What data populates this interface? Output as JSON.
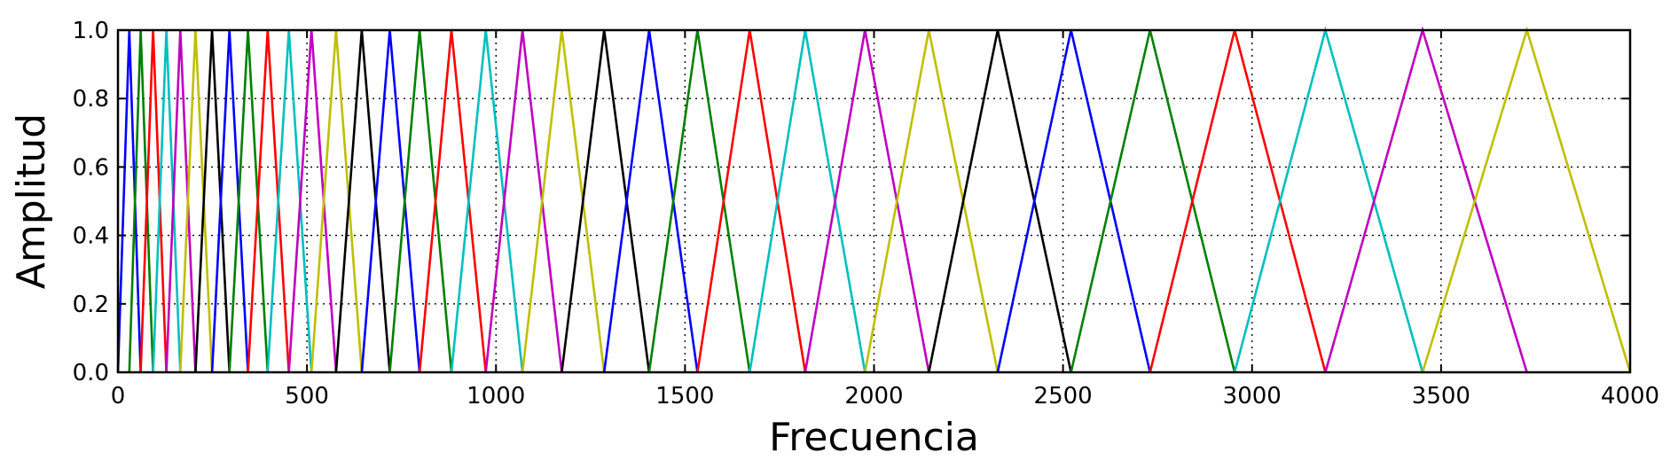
{
  "chart_data": {
    "type": "line",
    "title": "",
    "xlabel": "Frecuencia",
    "ylabel": "Amplitud",
    "xlim": [
      0,
      4000
    ],
    "ylim": [
      0,
      1.0
    ],
    "x_ticks": [
      0,
      500,
      1000,
      1500,
      2000,
      2500,
      3000,
      3500,
      4000
    ],
    "y_ticks": [
      0.0,
      0.2,
      0.4,
      0.6,
      0.8,
      1.0
    ],
    "x_tick_labels": [
      "0",
      "500",
      "1000",
      "1500",
      "2000",
      "2500",
      "3000",
      "3500",
      "4000"
    ],
    "y_tick_labels": [
      "0.0",
      "0.2",
      "0.4",
      "0.6",
      "0.8",
      "1.0"
    ],
    "grid": true,
    "color_cycle": [
      "#0000ff",
      "#008000",
      "#ff0000",
      "#00bfbf",
      "#bf00bf",
      "#bfbf00",
      "#000000"
    ],
    "filter_centers": [
      0,
      30,
      60,
      93,
      128,
      165,
      205,
      249,
      295,
      344,
      396,
      452,
      512,
      577,
      645,
      719,
      798,
      882,
      973,
      1070,
      1174,
      1286,
      1405,
      1533,
      1671,
      1818,
      1976,
      2145,
      2327,
      2521,
      2730,
      2954,
      3194,
      3451,
      3727,
      4000
    ],
    "series_description_note": ""
  }
}
